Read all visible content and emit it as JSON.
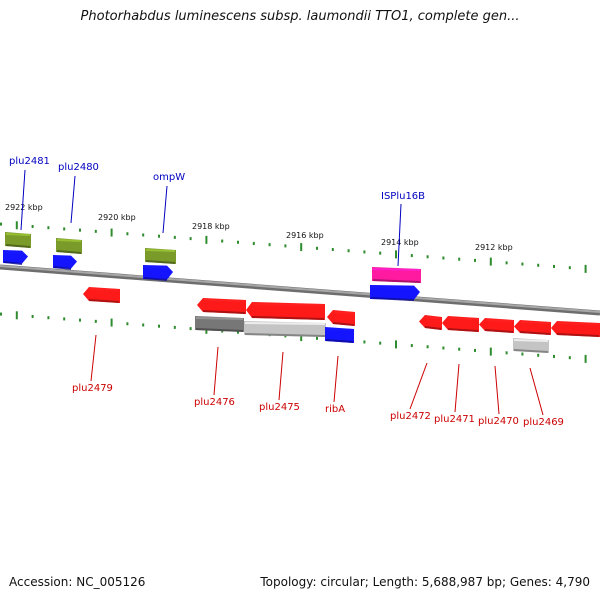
{
  "title": "Photorhabdus luminescens subsp. laumondii TTO1, complete gen...",
  "footer": {
    "accession": "Accession: NC_005126",
    "summary": "Topology: circular; Length: 5,688,987 bp; Genes: 4,790"
  },
  "colors": {
    "backbone": "#8a8a8a",
    "tick": "#2e8b2e",
    "gene_red": "#ff1a1a",
    "gene_blue": "#1414ff",
    "gene_olive": "#7a9a2a",
    "gene_pink": "#ff1aa0",
    "gene_gray": "#777777",
    "gene_lightgray": "#c4c4c4",
    "label_forward": "#0000c0",
    "label_reverse": "#cc0000"
  },
  "position_labels": [
    "2922 kbp",
    "2920 kbp",
    "2918 kbp",
    "2916 kbp",
    "2914 kbp",
    "2912 kbp"
  ],
  "genes": [
    {
      "id": "g-plu2481-olive",
      "color": "olive",
      "strand": "none",
      "label": ""
    },
    {
      "id": "g-plu2481-blue",
      "color": "blue",
      "strand": "right",
      "label": ""
    },
    {
      "id": "g-plu2480-olive",
      "color": "olive",
      "strand": "none",
      "label": ""
    },
    {
      "id": "g-plu2480-blue",
      "color": "blue",
      "strand": "right",
      "label": ""
    },
    {
      "id": "g-ompw-olive",
      "color": "olive",
      "strand": "none",
      "label": ""
    },
    {
      "id": "g-ompw-blue",
      "color": "blue",
      "strand": "right",
      "label": ""
    },
    {
      "id": "g-ispplu16b-pink",
      "color": "pink",
      "strand": "none",
      "label": ""
    },
    {
      "id": "g-ispplu16b-blue",
      "color": "blue",
      "strand": "right",
      "label": ""
    },
    {
      "id": "g-plu2479",
      "color": "red",
      "strand": "left",
      "label": ""
    },
    {
      "id": "g-plu2476",
      "color": "red",
      "strand": "left",
      "label": ""
    },
    {
      "id": "g-plu2476-gray",
      "color": "gray",
      "strand": "none",
      "label": ""
    },
    {
      "id": "g-plu2475",
      "color": "red",
      "strand": "left",
      "label": ""
    },
    {
      "id": "g-plu2475-lightgray",
      "color": "lightgray",
      "strand": "none",
      "label": ""
    },
    {
      "id": "g-riba-red",
      "color": "red",
      "strand": "left",
      "label": ""
    },
    {
      "id": "g-riba-blue",
      "color": "blue",
      "strand": "none",
      "label": ""
    },
    {
      "id": "g-plu2472",
      "color": "red",
      "strand": "left",
      "label": ""
    },
    {
      "id": "g-plu2471",
      "color": "red",
      "strand": "left",
      "label": ""
    },
    {
      "id": "g-plu2470",
      "color": "red",
      "strand": "left",
      "label": ""
    },
    {
      "id": "g-plu2469",
      "color": "red",
      "strand": "left",
      "label": ""
    },
    {
      "id": "g-plu2469-lightgray",
      "color": "lightgray",
      "strand": "none",
      "label": ""
    },
    {
      "id": "g-edge",
      "color": "red",
      "strand": "left",
      "label": ""
    }
  ],
  "gene_labels": [
    {
      "text": "plu2481",
      "strand": "forward"
    },
    {
      "text": "plu2480",
      "strand": "forward"
    },
    {
      "text": "ompW",
      "strand": "forward"
    },
    {
      "text": "ISPlu16B",
      "strand": "forward"
    },
    {
      "text": "plu2479",
      "strand": "reverse"
    },
    {
      "text": "plu2476",
      "strand": "reverse"
    },
    {
      "text": "plu2475",
      "strand": "reverse"
    },
    {
      "text": "ribA",
      "strand": "reverse"
    },
    {
      "text": "plu2472",
      "strand": "reverse"
    },
    {
      "text": "plu2471",
      "strand": "reverse"
    },
    {
      "text": "plu2470",
      "strand": "reverse"
    },
    {
      "text": "plu2469",
      "strand": "reverse"
    }
  ]
}
